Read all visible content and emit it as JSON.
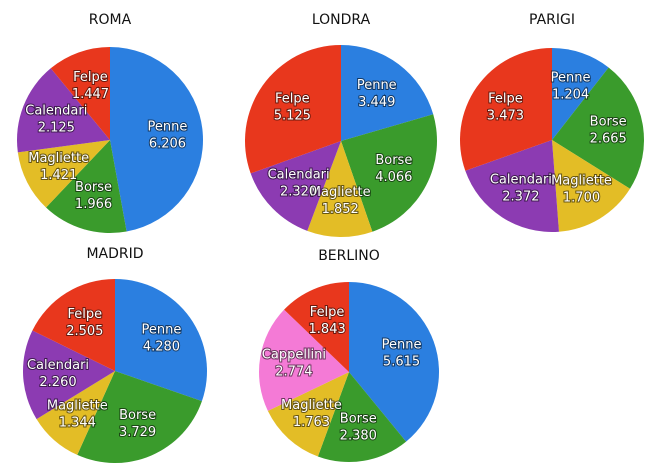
{
  "chart_data": [
    {
      "type": "pie",
      "title": "ROMA",
      "categories": [
        "Penne",
        "Borse",
        "Magliette",
        "Calendari",
        "Felpe"
      ],
      "values": [
        6206,
        1966,
        1421,
        2125,
        1447
      ],
      "value_labels": [
        "6.206",
        "1.966",
        "1.421",
        "2.125",
        "1.447"
      ],
      "colors": [
        "#2b7fe0",
        "#3a9b2c",
        "#e3bd26",
        "#8c3bb2",
        "#e8371d"
      ]
    },
    {
      "type": "pie",
      "title": "LONDRA",
      "categories": [
        "Penne",
        "Borse",
        "Magliette",
        "Calendari",
        "Felpe"
      ],
      "values": [
        3449,
        4066,
        1852,
        2320,
        5125
      ],
      "value_labels": [
        "3.449",
        "4.066",
        "1.852",
        "2.320",
        "5.125"
      ],
      "colors": [
        "#2b7fe0",
        "#3a9b2c",
        "#e3bd26",
        "#8c3bb2",
        "#e8371d"
      ]
    },
    {
      "type": "pie",
      "title": "PARIGI",
      "categories": [
        "Penne",
        "Borse",
        "Magliette",
        "Calendari",
        "Felpe"
      ],
      "values": [
        1204,
        2665,
        1700,
        2372,
        3473
      ],
      "value_labels": [
        "1.204",
        "2.665",
        "1.700",
        "2.372",
        "3.473"
      ],
      "colors": [
        "#2b7fe0",
        "#3a9b2c",
        "#e3bd26",
        "#8c3bb2",
        "#e8371d"
      ]
    },
    {
      "type": "pie",
      "title": "MADRID",
      "categories": [
        "Penne",
        "Borse",
        "Magliette",
        "Calendari",
        "Felpe"
      ],
      "values": [
        4280,
        3729,
        1344,
        2260,
        2505
      ],
      "value_labels": [
        "4.280",
        "3.729",
        "1.344",
        "2.260",
        "2.505"
      ],
      "colors": [
        "#2b7fe0",
        "#3a9b2c",
        "#e3bd26",
        "#8c3bb2",
        "#e8371d"
      ]
    },
    {
      "type": "pie",
      "title": "BERLINO",
      "categories": [
        "Penne",
        "Borse",
        "Magliette",
        "Cappellini",
        "Felpe"
      ],
      "values": [
        5615,
        2380,
        1763,
        2774,
        1843
      ],
      "value_labels": [
        "5.615",
        "2.380",
        "1.763",
        "2.774",
        "1.843"
      ],
      "colors": [
        "#2b7fe0",
        "#3a9b2c",
        "#e3bd26",
        "#f47ad6",
        "#e8371d"
      ]
    }
  ]
}
